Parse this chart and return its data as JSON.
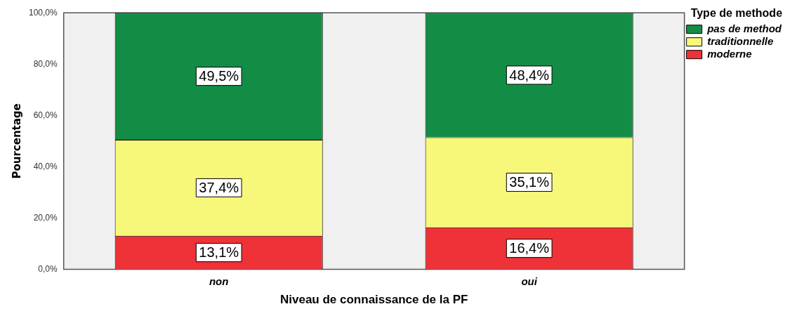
{
  "chart_data": {
    "type": "bar",
    "stacked": true,
    "xlabel": "Niveau de connaissance de la PF",
    "ylabel": "Pourcentage",
    "legend_title": "Type de methode",
    "legend": "top right",
    "categories": [
      "non",
      "oui"
    ],
    "series": [
      {
        "name": "moderne",
        "color": "#ee3238",
        "values": [
          13.1,
          16.4
        ],
        "value_labels": [
          "13,1%",
          "16,4%"
        ]
      },
      {
        "name": "traditionnelle",
        "color": "#f7f77a",
        "values": [
          37.4,
          35.1
        ],
        "value_labels": [
          "37,4%",
          "35,1%"
        ]
      },
      {
        "name": "pas de method",
        "color": "#138d45",
        "values": [
          49.5,
          48.4
        ],
        "value_labels": [
          "49,5%",
          "48,4%"
        ]
      }
    ],
    "ylim": [
      0,
      100
    ],
    "yticks": [
      {
        "value": 0,
        "label": "0,0%"
      },
      {
        "value": 20,
        "label": "20,0%"
      },
      {
        "value": 40,
        "label": "40,0%"
      },
      {
        "value": 60,
        "label": "60,0%"
      },
      {
        "value": 80,
        "label": "80,0%"
      },
      {
        "value": 100,
        "label": "100,0%"
      }
    ]
  }
}
